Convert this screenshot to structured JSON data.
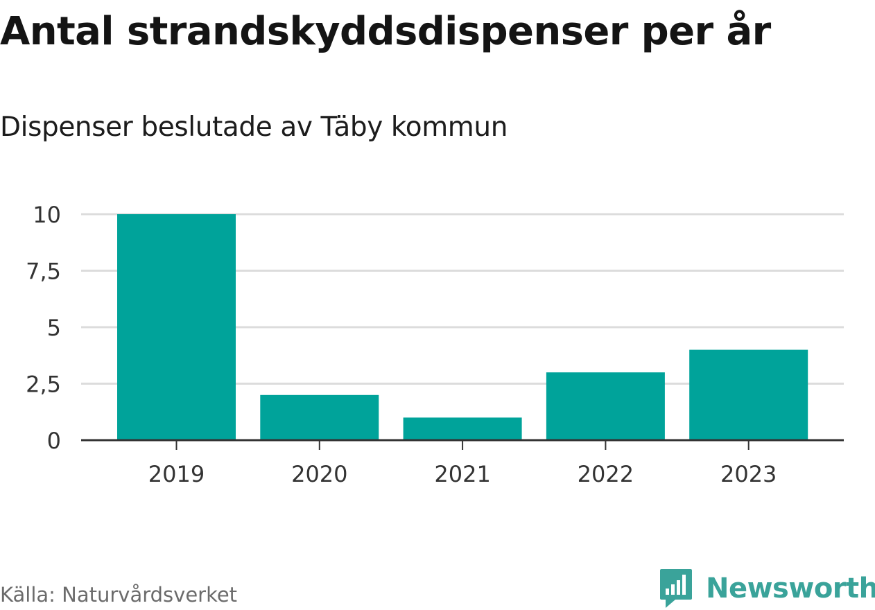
{
  "header": {
    "title": "Antal strandskyddsdispenser per år",
    "subtitle": "Dispenser beslutade av Täby kommun"
  },
  "footer": {
    "source": "Källa: Naturvårdsverket",
    "brand": "Newsworthy"
  },
  "colors": {
    "bar": "#00a39a",
    "grid": "#dcdcdc",
    "axis": "#333333",
    "tick_text": "#333333",
    "brand": "#3aa39a"
  },
  "chart_data": {
    "type": "bar",
    "title": "Antal strandskyddsdispenser per år",
    "subtitle": "Dispenser beslutade av Täby kommun",
    "categories": [
      "2019",
      "2020",
      "2021",
      "2022",
      "2023"
    ],
    "values": [
      10,
      2,
      1,
      3,
      4
    ],
    "xlabel": "",
    "ylabel": "",
    "ylim": [
      0,
      10
    ],
    "yticks": [
      0,
      2.5,
      5,
      7.5,
      10
    ],
    "ytick_labels": [
      "0",
      "2,5",
      "5",
      "7,5",
      "10"
    ],
    "grid": true,
    "legend": "none"
  }
}
